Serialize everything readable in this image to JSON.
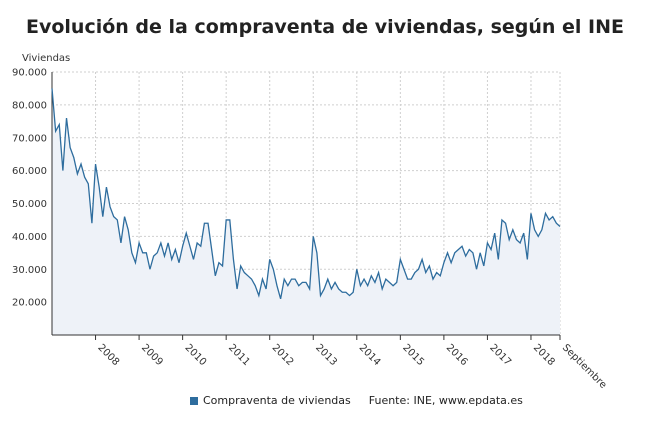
{
  "chart_data": {
    "type": "area",
    "title": "Evolución de la compraventa de viviendas, según el INE",
    "ylabel": "Viviendas",
    "xlabel": "",
    "ylim": [
      10000,
      90000
    ],
    "yticks": [
      20000,
      30000,
      40000,
      50000,
      60000,
      70000,
      80000,
      90000
    ],
    "ytick_labels": [
      "20.000",
      "30.000",
      "40.000",
      "50.000",
      "60.000",
      "70.000",
      "80.000",
      "90.000"
    ],
    "x_start": "2007-01",
    "x_end": "2018-09",
    "xtick_labels": [
      "2008",
      "2009",
      "2010",
      "2011",
      "2012",
      "2013",
      "2014",
      "2015",
      "2016",
      "2017",
      "2018",
      "Septiembre"
    ],
    "xtick_dates": [
      "2008-01",
      "2009-01",
      "2010-01",
      "2011-01",
      "2012-01",
      "2013-01",
      "2014-01",
      "2015-01",
      "2016-01",
      "2017-01",
      "2018-01",
      "2018-09"
    ],
    "grid": true,
    "legend_position": "bottom",
    "series": [
      {
        "name": "Compraventa de viviendas",
        "color": "#2e6d9e",
        "values": [
          85000,
          72000,
          74000,
          60000,
          76000,
          67000,
          64000,
          59000,
          62000,
          58000,
          56000,
          44000,
          62000,
          55000,
          46000,
          55000,
          49000,
          46000,
          45000,
          38000,
          46000,
          42000,
          35000,
          32000,
          38000,
          35000,
          35000,
          30000,
          34000,
          35000,
          38000,
          34000,
          38000,
          33000,
          36000,
          32000,
          37000,
          41000,
          37000,
          33000,
          38000,
          37000,
          44000,
          44000,
          36000,
          28000,
          32000,
          31000,
          45000,
          45000,
          33000,
          24000,
          31000,
          29000,
          28000,
          27000,
          25000,
          22000,
          27000,
          24000,
          33000,
          30000,
          25000,
          21000,
          27000,
          25000,
          27000,
          27000,
          25000,
          26000,
          26000,
          24000,
          40000,
          35000,
          22000,
          24000,
          27000,
          24000,
          26000,
          24000,
          23000,
          23000,
          22000,
          23000,
          30000,
          25000,
          27000,
          25000,
          28000,
          26000,
          29000,
          24000,
          27000,
          26000,
          25000,
          26000,
          33000,
          30000,
          27000,
          27000,
          29000,
          30000,
          33000,
          29000,
          31000,
          27000,
          29000,
          28000,
          32000,
          35000,
          32000,
          35000,
          36000,
          37000,
          34000,
          36000,
          35000,
          30000,
          35000,
          31000,
          38000,
          36000,
          41000,
          33000,
          45000,
          44000,
          39000,
          42000,
          39000,
          38000,
          41000,
          33000,
          47000,
          42000,
          40000,
          42000,
          47000,
          45000,
          46000,
          44000,
          43000
        ]
      }
    ],
    "source_label": "Fuente: INE, www.epdata.es"
  }
}
